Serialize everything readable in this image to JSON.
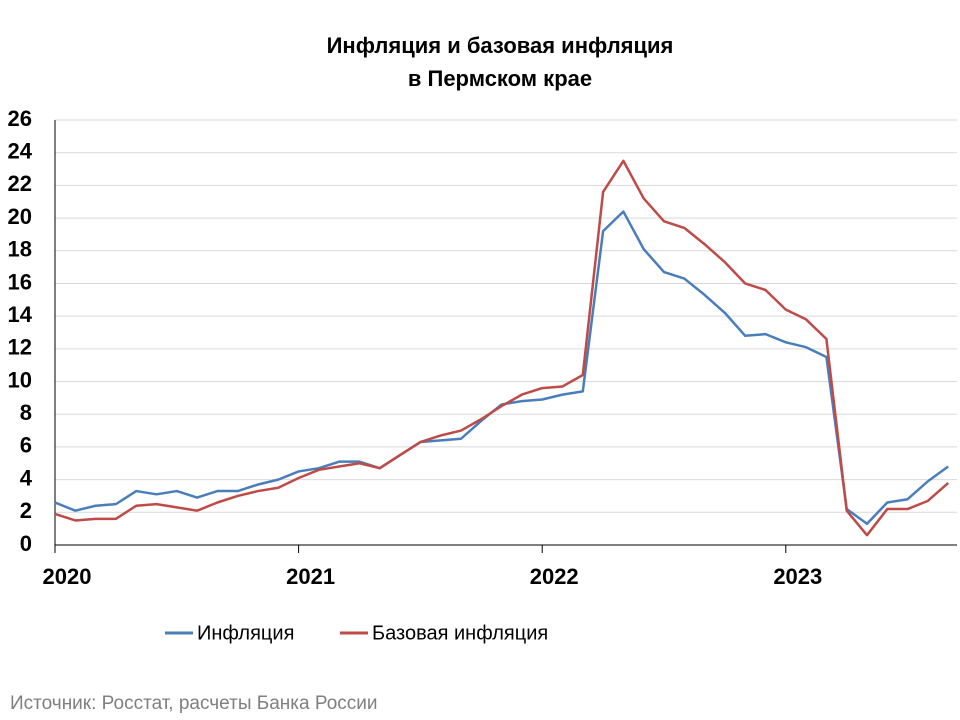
{
  "chart_data": {
    "type": "line",
    "title": "Инфляция и базовая инфляция",
    "subtitle": "в Пермском крае",
    "source": "Источник: Росстат, расчеты Банка России",
    "categories": [
      "2020",
      null,
      null,
      null,
      null,
      null,
      null,
      null,
      null,
      null,
      null,
      null,
      "2021",
      null,
      null,
      null,
      null,
      null,
      null,
      null,
      null,
      null,
      null,
      null,
      "2022",
      null,
      null,
      null,
      null,
      null,
      null,
      null,
      null,
      null,
      null,
      null,
      "2023",
      null,
      null,
      null,
      null,
      null,
      null,
      null,
      null
    ],
    "series": [
      {
        "name": "Инфляция",
        "color": "#4a7ebb",
        "values": [
          2.6,
          2.1,
          2.4,
          2.5,
          3.3,
          3.1,
          3.3,
          2.9,
          3.3,
          3.3,
          3.7,
          4.0,
          4.5,
          4.7,
          5.1,
          5.1,
          4.7,
          5.5,
          6.3,
          6.4,
          6.5,
          7.6,
          8.6,
          8.8,
          8.9,
          9.2,
          9.4,
          19.2,
          20.4,
          18.1,
          16.7,
          16.3,
          15.3,
          14.2,
          12.8,
          12.9,
          12.4,
          12.1,
          11.5,
          2.2,
          1.3,
          2.6,
          2.8,
          3.9,
          4.8
        ]
      },
      {
        "name": "Базовая инфляция",
        "color": "#be4b48",
        "values": [
          1.9,
          1.5,
          1.6,
          1.6,
          2.4,
          2.5,
          2.3,
          2.1,
          2.6,
          3.0,
          3.3,
          3.5,
          4.1,
          4.6,
          4.8,
          5.0,
          4.7,
          5.5,
          6.3,
          6.7,
          7.0,
          7.7,
          8.5,
          9.2,
          9.6,
          9.7,
          10.4,
          21.6,
          23.5,
          21.2,
          19.8,
          19.4,
          18.4,
          17.3,
          16.0,
          15.6,
          14.4,
          13.8,
          12.6,
          2.1,
          0.6,
          2.2,
          2.2,
          2.7,
          3.8
        ]
      }
    ],
    "ylim": [
      0,
      26
    ],
    "yticks": [
      0,
      2,
      4,
      6,
      8,
      10,
      12,
      14,
      16,
      18,
      20,
      22,
      24,
      26
    ],
    "grid": true,
    "legend": "bottom"
  }
}
